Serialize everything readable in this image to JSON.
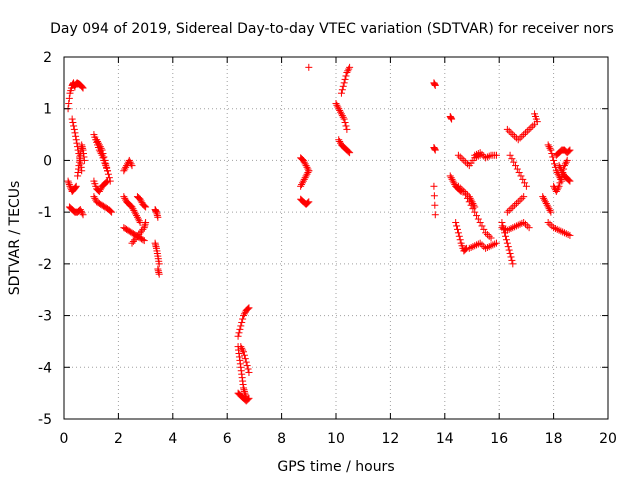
{
  "chart_data": {
    "type": "scatter",
    "title": "Day 094 of 2019, Sidereal Day-to-day VTEC variation (SDTVAR) for receiver nors",
    "xlabel": "GPS time / hours",
    "ylabel": "SDTVAR / TECUs",
    "xlim": [
      0,
      20
    ],
    "ylim": [
      -5,
      2
    ],
    "xticks": [
      0,
      2,
      4,
      6,
      8,
      10,
      12,
      14,
      16,
      18,
      20
    ],
    "yticks": [
      -5,
      -4,
      -3,
      -2,
      -1,
      0,
      1,
      2
    ],
    "grid": true,
    "marker": "+",
    "color": "#ff0000",
    "segments": [
      {
        "x": [
          0.15,
          0.22,
          0.3,
          0.35,
          0.4
        ],
        "y": [
          1.0,
          1.3,
          1.45,
          1.5,
          1.42
        ]
      },
      {
        "x": [
          0.4,
          0.48,
          0.55,
          0.62,
          0.7
        ],
        "y": [
          1.45,
          1.5,
          1.48,
          1.45,
          1.4
        ]
      },
      {
        "x": [
          0.3,
          0.38,
          0.45,
          0.52,
          0.6,
          0.65
        ],
        "y": [
          0.8,
          0.6,
          0.4,
          0.2,
          0.0,
          -0.2
        ]
      },
      {
        "x": [
          0.15,
          0.22,
          0.3,
          0.38,
          0.45
        ],
        "y": [
          -0.4,
          -0.5,
          -0.6,
          -0.55,
          -0.5
        ]
      },
      {
        "x": [
          0.2,
          0.3,
          0.4,
          0.5,
          0.6,
          0.7
        ],
        "y": [
          -0.9,
          -0.95,
          -1.0,
          -1.0,
          -0.95,
          -1.05
        ]
      },
      {
        "x": [
          0.5,
          0.55,
          0.6,
          0.65,
          0.7,
          0.75
        ],
        "y": [
          -0.3,
          -0.1,
          0.1,
          0.3,
          0.2,
          0.0
        ]
      },
      {
        "x": [
          1.1,
          1.2,
          1.3,
          1.4,
          1.5,
          1.6
        ],
        "y": [
          0.5,
          0.35,
          0.2,
          0.1,
          -0.05,
          -0.2
        ]
      },
      {
        "x": [
          1.2,
          1.3,
          1.4,
          1.5,
          1.6,
          1.7
        ],
        "y": [
          0.4,
          0.3,
          0.2,
          0.0,
          -0.2,
          -0.4
        ]
      },
      {
        "x": [
          1.1,
          1.2,
          1.3,
          1.4,
          1.5,
          1.6
        ],
        "y": [
          -0.4,
          -0.55,
          -0.6,
          -0.5,
          -0.45,
          -0.4
        ]
      },
      {
        "x": [
          1.1,
          1.2,
          1.35,
          1.5,
          1.65,
          1.75
        ],
        "y": [
          -0.7,
          -0.8,
          -0.85,
          -0.9,
          -0.95,
          -1.0
        ]
      },
      {
        "x": [
          2.2,
          2.3,
          2.4,
          2.5
        ],
        "y": [
          -0.2,
          -0.1,
          0.0,
          -0.1
        ]
      },
      {
        "x": [
          2.2,
          2.3,
          2.4,
          2.5,
          2.6,
          2.7,
          2.8
        ],
        "y": [
          -0.7,
          -0.8,
          -0.85,
          -0.9,
          -1.0,
          -1.1,
          -1.2
        ]
      },
      {
        "x": [
          2.2,
          2.35,
          2.5,
          2.65,
          2.8,
          2.95
        ],
        "y": [
          -1.3,
          -1.35,
          -1.4,
          -1.45,
          -1.5,
          -1.55
        ]
      },
      {
        "x": [
          2.5,
          2.65,
          2.8,
          2.95,
          3.0
        ],
        "y": [
          -1.6,
          -1.5,
          -1.4,
          -1.3,
          -1.2
        ]
      },
      {
        "x": [
          2.7,
          2.8,
          2.9,
          3.0
        ],
        "y": [
          -0.7,
          -0.75,
          -0.85,
          -0.9
        ]
      },
      {
        "x": [
          3.35,
          3.4,
          3.45
        ],
        "y": [
          -0.95,
          -1.0,
          -1.1
        ]
      },
      {
        "x": [
          3.35,
          3.4,
          3.45,
          3.5
        ],
        "y": [
          -1.6,
          -1.7,
          -1.85,
          -2.0
        ]
      },
      {
        "x": [
          3.45,
          3.5
        ],
        "y": [
          -2.1,
          -2.2
        ]
      },
      {
        "x": [
          6.4,
          6.5,
          6.6,
          6.7,
          6.8
        ],
        "y": [
          -3.4,
          -3.2,
          -3.0,
          -2.9,
          -2.85
        ]
      },
      {
        "x": [
          6.4,
          6.45,
          6.5,
          6.55,
          6.6,
          6.65,
          6.7
        ],
        "y": [
          -3.6,
          -3.8,
          -4.0,
          -4.2,
          -4.4,
          -4.5,
          -4.6
        ]
      },
      {
        "x": [
          6.5,
          6.6,
          6.7,
          6.8
        ],
        "y": [
          -3.6,
          -3.7,
          -3.9,
          -4.1
        ]
      },
      {
        "x": [
          6.4,
          6.5,
          6.6,
          6.7,
          6.8
        ],
        "y": [
          -4.5,
          -4.55,
          -4.6,
          -4.65,
          -4.6
        ]
      },
      {
        "x": [
          8.7,
          8.8,
          8.9,
          9.0
        ],
        "y": [
          0.05,
          0.0,
          -0.1,
          -0.2
        ]
      },
      {
        "x": [
          8.7,
          8.8,
          8.9,
          9.0
        ],
        "y": [
          -0.5,
          -0.4,
          -0.3,
          -0.2
        ]
      },
      {
        "x": [
          8.7,
          8.8,
          8.9,
          9.0
        ],
        "y": [
          -0.75,
          -0.8,
          -0.85,
          -0.8
        ]
      },
      {
        "x": [
          9.0
        ],
        "y": [
          1.8
        ]
      },
      {
        "x": [
          10.0,
          10.1,
          10.2,
          10.3,
          10.4
        ],
        "y": [
          1.1,
          1.0,
          0.9,
          0.8,
          0.6
        ]
      },
      {
        "x": [
          10.1,
          10.2,
          10.3,
          10.4,
          10.5
        ],
        "y": [
          0.4,
          0.3,
          0.25,
          0.2,
          0.15
        ]
      },
      {
        "x": [
          10.2,
          10.3,
          10.4,
          10.5
        ],
        "y": [
          1.3,
          1.5,
          1.7,
          1.8
        ]
      },
      {
        "x": [
          13.6,
          13.65
        ],
        "y": [
          1.5,
          1.45
        ]
      },
      {
        "x": [
          13.6,
          13.65
        ],
        "y": [
          0.25,
          0.2
        ]
      },
      {
        "x": [
          13.6,
          13.65
        ],
        "y": [
          -0.5,
          -1.05
        ]
      },
      {
        "x": [
          14.2,
          14.25
        ],
        "y": [
          0.85,
          0.8
        ]
      },
      {
        "x": [
          14.2,
          14.3,
          14.4,
          14.5,
          14.6
        ],
        "y": [
          -0.3,
          -0.4,
          -0.5,
          -0.55,
          -0.6
        ]
      },
      {
        "x": [
          14.4,
          14.5,
          14.6,
          14.7,
          14.8
        ],
        "y": [
          -1.2,
          -1.4,
          -1.6,
          -1.75,
          -1.7
        ]
      },
      {
        "x": [
          14.5,
          14.7,
          14.9,
          15.1,
          15.3
        ],
        "y": [
          0.1,
          0.0,
          -0.1,
          0.05,
          0.1
        ]
      },
      {
        "x": [
          15.1,
          15.3,
          15.5,
          15.7,
          15.9
        ],
        "y": [
          0.1,
          0.15,
          0.05,
          0.1,
          0.1
        ]
      },
      {
        "x": [
          14.7,
          14.9,
          15.1,
          15.3,
          15.5,
          15.7
        ],
        "y": [
          -0.6,
          -0.8,
          -1.0,
          -1.2,
          -1.4,
          -1.5
        ]
      },
      {
        "x": [
          14.9,
          15.1,
          15.3,
          15.5,
          15.7,
          15.9
        ],
        "y": [
          -1.7,
          -1.65,
          -1.6,
          -1.7,
          -1.65,
          -1.6
        ]
      },
      {
        "x": [
          14.5,
          14.7,
          14.9,
          15.0,
          15.1
        ],
        "y": [
          -0.5,
          -0.6,
          -0.7,
          -0.8,
          -0.9
        ]
      },
      {
        "x": [
          16.1,
          16.2,
          16.3,
          16.4,
          16.5
        ],
        "y": [
          -1.2,
          -1.4,
          -1.6,
          -1.8,
          -2.0
        ]
      },
      {
        "x": [
          16.3,
          16.5,
          16.7,
          16.9
        ],
        "y": [
          -1.0,
          -0.9,
          -0.8,
          -0.7
        ]
      },
      {
        "x": [
          16.3,
          16.5,
          16.7,
          16.9,
          17.1,
          17.3
        ],
        "y": [
          0.6,
          0.5,
          0.4,
          0.5,
          0.6,
          0.7
        ]
      },
      {
        "x": [
          16.4,
          16.6,
          16.8,
          17.0
        ],
        "y": [
          0.1,
          -0.1,
          -0.3,
          -0.5
        ]
      },
      {
        "x": [
          16.1,
          16.3,
          16.5,
          16.7,
          16.9,
          17.1
        ],
        "y": [
          -1.3,
          -1.35,
          -1.3,
          -1.25,
          -1.2,
          -1.3
        ]
      },
      {
        "x": [
          17.3,
          17.4
        ],
        "y": [
          0.9,
          0.75
        ]
      },
      {
        "x": [
          17.6,
          17.7,
          17.8,
          17.9
        ],
        "y": [
          -0.7,
          -0.8,
          -0.9,
          -1.0
        ]
      },
      {
        "x": [
          17.8,
          18.0,
          18.2,
          18.4,
          18.6
        ],
        "y": [
          -1.2,
          -1.3,
          -1.35,
          -1.4,
          -1.45
        ]
      },
      {
        "x": [
          17.8,
          17.9,
          18.0,
          18.1,
          18.2,
          18.3
        ],
        "y": [
          0.3,
          0.2,
          0.0,
          -0.2,
          -0.3,
          -0.4
        ]
      },
      {
        "x": [
          18.0,
          18.1,
          18.2,
          18.3,
          18.4,
          18.5
        ],
        "y": [
          -0.5,
          -0.6,
          -0.5,
          -0.3,
          -0.1,
          0.0
        ]
      },
      {
        "x": [
          18.1,
          18.2,
          18.3,
          18.4,
          18.5,
          18.6
        ],
        "y": [
          0.1,
          0.15,
          0.2,
          0.2,
          0.15,
          0.2
        ]
      },
      {
        "x": [
          18.2,
          18.3,
          18.4,
          18.5,
          18.6
        ],
        "y": [
          -0.1,
          -0.2,
          -0.3,
          -0.35,
          -0.4
        ]
      }
    ]
  }
}
